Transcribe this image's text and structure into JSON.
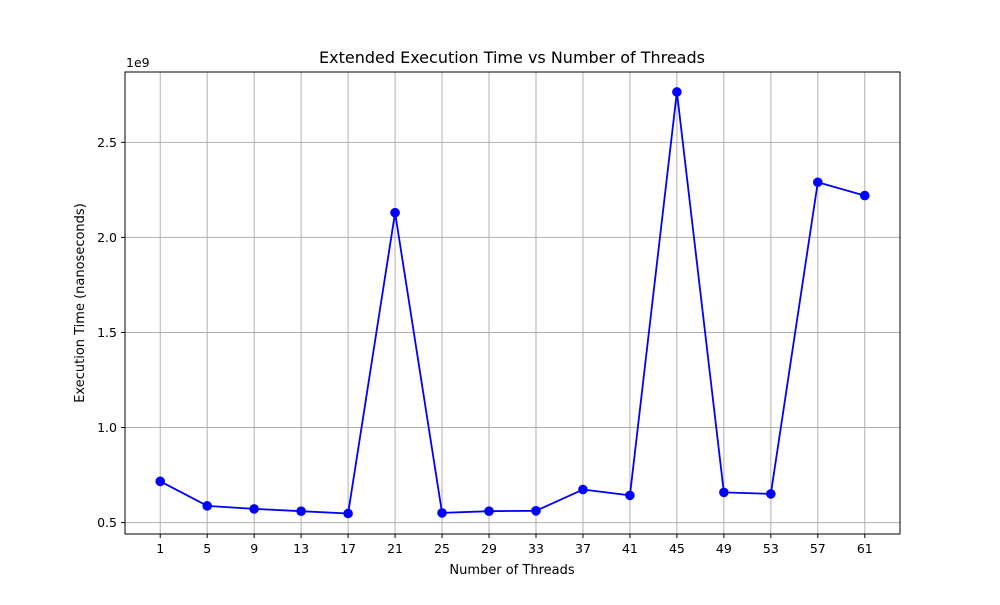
{
  "chart_data": {
    "type": "line",
    "title": "Extended Execution Time vs Number of Threads",
    "xlabel": "Number of Threads",
    "ylabel": "Execution Time (nanoseconds)",
    "y_offset_text": "1e9",
    "x": [
      1,
      5,
      9,
      13,
      17,
      21,
      25,
      29,
      33,
      37,
      41,
      45,
      49,
      53,
      57,
      61
    ],
    "x_ticks": [
      "1",
      "5",
      "9",
      "13",
      "17",
      "21",
      "25",
      "29",
      "33",
      "37",
      "41",
      "45",
      "49",
      "53",
      "57",
      "61"
    ],
    "y_ticks": [
      0.5,
      1.0,
      1.5,
      2.0,
      2.5
    ],
    "y_tick_labels": [
      "0.5",
      "1.0",
      "1.5",
      "2.0",
      "2.5"
    ],
    "ylim": [
      0.44,
      2.87
    ],
    "xlim": [
      -2,
      64
    ],
    "y_scale": 1000000000,
    "series": [
      {
        "color": "#0000ff",
        "marker": "circle",
        "values": [
          0.717,
          0.588,
          0.572,
          0.56,
          0.548,
          2.13,
          0.551,
          0.56,
          0.562,
          0.674,
          0.643,
          2.765,
          0.659,
          0.651,
          2.29,
          2.22
        ]
      }
    ],
    "grid": true,
    "legend": "none"
  }
}
